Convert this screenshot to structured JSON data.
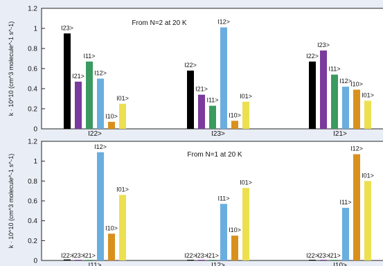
{
  "chart_data": [
    {
      "type": "bar",
      "title": "From N=2 at 20 K",
      "ylabel": "k · 10^10 (cm^3 molecule^-1 s^-1)",
      "ylim": [
        0,
        1.2
      ],
      "yticks": [
        "0",
        "0.2",
        "0.4",
        "0.6",
        "0.8",
        "1",
        "1.2"
      ],
      "groups": [
        {
          "label": "I22>",
          "bars": [
            {
              "state": "I23>",
              "value": 0.95,
              "color": "#000000"
            },
            {
              "state": "I21>",
              "value": 0.47,
              "color": "#7a3a9e"
            },
            {
              "state": "I11>",
              "value": 0.67,
              "color": "#3a9a60"
            },
            {
              "state": "I12>",
              "value": 0.5,
              "color": "#6aaee0"
            },
            {
              "state": "I10>",
              "value": 0.07,
              "color": "#d9901c"
            },
            {
              "state": "I01>",
              "value": 0.25,
              "color": "#ece050"
            }
          ]
        },
        {
          "label": "I23>",
          "bars": [
            {
              "state": "I22>",
              "value": 0.58,
              "color": "#000000"
            },
            {
              "state": "I21>",
              "value": 0.34,
              "color": "#7a3a9e"
            },
            {
              "state": "I11>",
              "value": 0.23,
              "color": "#3a9a60"
            },
            {
              "state": "I12>",
              "value": 1.01,
              "color": "#6aaee0"
            },
            {
              "state": "I10>",
              "value": 0.08,
              "color": "#d9901c"
            },
            {
              "state": "I01>",
              "value": 0.27,
              "color": "#ece050"
            }
          ]
        },
        {
          "label": "I21>",
          "bars": [
            {
              "state": "I22>",
              "value": 0.67,
              "color": "#000000"
            },
            {
              "state": "I23>",
              "value": 0.78,
              "color": "#7a3a9e"
            },
            {
              "state": "I11>",
              "value": 0.54,
              "color": "#3a9a60"
            },
            {
              "state": "I12>",
              "value": 0.42,
              "color": "#6aaee0"
            },
            {
              "state": "I10>",
              "value": 0.39,
              "color": "#d9901c"
            },
            {
              "state": "I01>",
              "value": 0.28,
              "color": "#ece050"
            }
          ]
        }
      ]
    },
    {
      "type": "bar",
      "title": "From N=1 at 20 K",
      "ylabel": "k · 10^10 (cm^3 molecule^-1 s^-1)",
      "ylim": [
        0,
        1.2
      ],
      "yticks": [
        "0",
        "0.2",
        "0.4",
        "0.6",
        "0.8",
        "1",
        "1.2"
      ],
      "groups": [
        {
          "label": "I11>",
          "bars": [
            {
              "state": "I22>",
              "value": 0.01,
              "color": "#000000"
            },
            {
              "state": "I23>",
              "value": 0.005,
              "color": "#7a3a9e"
            },
            {
              "state": "I21>",
              "value": 0.005,
              "color": "#3a9a60"
            },
            {
              "state": "I12>",
              "value": 1.09,
              "color": "#6aaee0"
            },
            {
              "state": "I10>",
              "value": 0.27,
              "color": "#d9901c"
            },
            {
              "state": "I01>",
              "value": 0.66,
              "color": "#ece050"
            }
          ]
        },
        {
          "label": "I12>",
          "bars": [
            {
              "state": "I22>",
              "value": 0.005,
              "color": "#000000"
            },
            {
              "state": "I23>",
              "value": 0.005,
              "color": "#7a3a9e"
            },
            {
              "state": "I21>",
              "value": 0.005,
              "color": "#3a9a60"
            },
            {
              "state": "I11>",
              "value": 0.57,
              "color": "#6aaee0"
            },
            {
              "state": "I10>",
              "value": 0.25,
              "color": "#d9901c"
            },
            {
              "state": "I01>",
              "value": 0.73,
              "color": "#ece050"
            }
          ]
        },
        {
          "label": "I10>",
          "bars": [
            {
              "state": "I22>",
              "value": 0.005,
              "color": "#000000"
            },
            {
              "state": "I23>",
              "value": 0.005,
              "color": "#7a3a9e"
            },
            {
              "state": "I21>",
              "value": 0.005,
              "color": "#3a9a60"
            },
            {
              "state": "I11>",
              "value": 0.53,
              "color": "#6aaee0"
            },
            {
              "state": "I12>",
              "value": 1.07,
              "color": "#d9901c"
            },
            {
              "state": "I01>",
              "value": 0.8,
              "color": "#ece050"
            }
          ]
        }
      ]
    }
  ]
}
